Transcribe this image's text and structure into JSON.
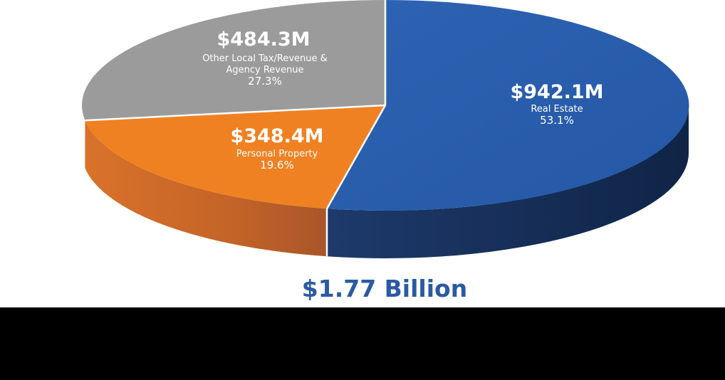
{
  "colors": {
    "real_estate": "#2a5fae",
    "personal_property": "#f08122",
    "other": "#9b9b9b",
    "total_text": "#2a5aa4"
  },
  "chart_data": {
    "type": "pie",
    "title": "",
    "total_label": "$1.77 Billion",
    "slices": [
      {
        "key": "real_estate",
        "label": "Real Estate",
        "value_label": "$942.1M",
        "value": 942.1,
        "percent_label": "53.1%",
        "percent": 53.1
      },
      {
        "key": "personal_property",
        "label": "Personal Property",
        "value_label": "$348.4M",
        "value": 348.4,
        "percent_label": "19.6%",
        "percent": 19.6
      },
      {
        "key": "other",
        "label_lines": [
          "Other Local Tax/Revenue &",
          "Agency Revenue"
        ],
        "value_label": "$484.3M",
        "value": 484.3,
        "percent_label": "27.3%",
        "percent": 27.3
      }
    ]
  }
}
